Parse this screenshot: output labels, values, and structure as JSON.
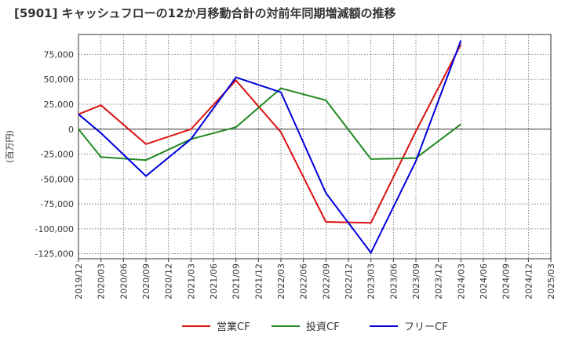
{
  "chart_data": {
    "type": "line",
    "title": "[5901]  キャッシュフローの12か月移動合計の対前年同期増減額の推移",
    "ylabel": "(百万円)",
    "xlabel": "",
    "ylim": [
      -130000,
      95000
    ],
    "yticks": [
      75000,
      50000,
      25000,
      0,
      -25000,
      -50000,
      -75000,
      -100000,
      -125000
    ],
    "ytick_labels": [
      "75,000",
      "50,000",
      "25,000",
      "0",
      "-25,000",
      "-50,000",
      "-75,000",
      "-100,000",
      "-125,000"
    ],
    "x_tick_labels": [
      "2019/12",
      "2020/03",
      "2020/06",
      "2020/09",
      "2020/12",
      "2021/03",
      "2021/06",
      "2021/09",
      "2021/12",
      "2022/03",
      "2022/06",
      "2022/09",
      "2022/12",
      "2023/03",
      "2023/06",
      "2023/09",
      "2023/12",
      "2024/03",
      "2024/06",
      "2024/09",
      "2024/12",
      "2025/03"
    ],
    "grid": true,
    "legend_position": "bottom",
    "series": [
      {
        "name": "営業CF",
        "color": "#dd1111",
        "x": [
          "2019/12",
          "2020/03",
          "2020/09",
          "2021/03",
          "2021/09",
          "2022/03",
          "2022/09",
          "2023/03",
          "2023/09",
          "2024/03"
        ],
        "values": [
          15000,
          24000,
          -15000,
          0,
          49000,
          -3000,
          -93000,
          -94000,
          -2000,
          85000
        ]
      },
      {
        "name": "投資CF",
        "color": "#228822",
        "x": [
          "2019/12",
          "2020/03",
          "2020/09",
          "2021/03",
          "2021/09",
          "2022/03",
          "2022/09",
          "2023/03",
          "2023/09",
          "2024/03"
        ],
        "values": [
          0,
          -28000,
          -31000,
          -10000,
          2000,
          41000,
          29000,
          -30000,
          -29000,
          5000
        ]
      },
      {
        "name": "フリーCF",
        "color": "#0000dd",
        "x": [
          "2019/12",
          "2020/03",
          "2020/09",
          "2021/03",
          "2021/09",
          "2022/03",
          "2022/09",
          "2023/03",
          "2023/09",
          "2024/03"
        ],
        "values": [
          15000,
          -4000,
          -47000,
          -10000,
          52000,
          37000,
          -64000,
          -124000,
          -32000,
          89000
        ]
      }
    ]
  }
}
